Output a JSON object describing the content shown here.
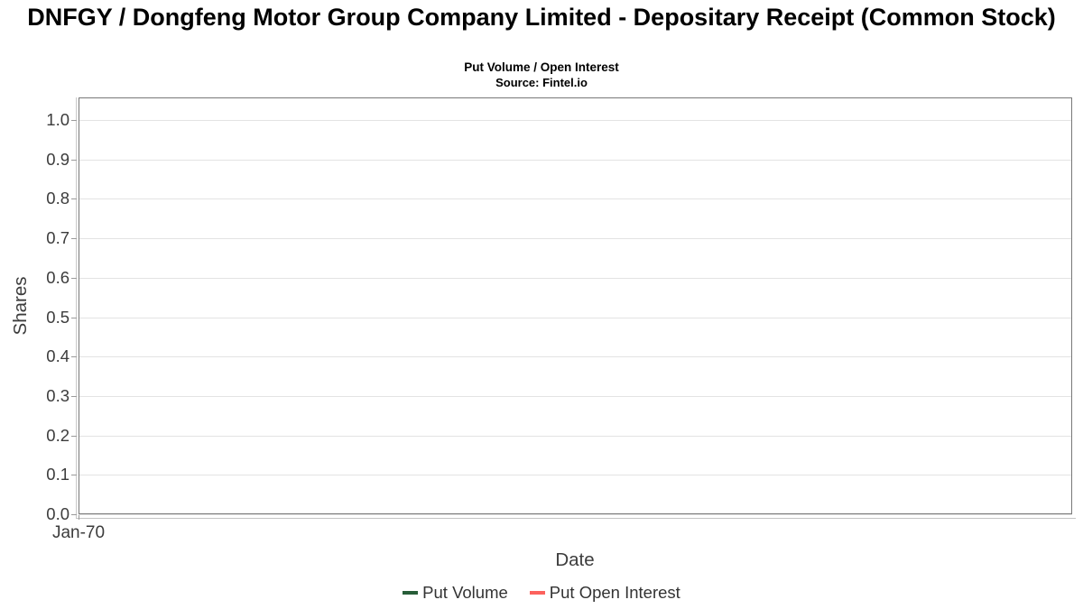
{
  "header": {
    "title": "DNFGY / Dongfeng Motor Group Company Limited - Depositary Receipt (Common Stock)",
    "subtitle": "Put Volume / Open Interest",
    "source": "Source: Fintel.io"
  },
  "chart_data": {
    "type": "line",
    "title": "DNFGY / Dongfeng Motor Group Company Limited - Depositary Receipt (Common Stock)",
    "subtitle": "Put Volume / Open Interest",
    "source": "Source: Fintel.io",
    "xlabel": "Date",
    "ylabel": "Shares",
    "ylim": [
      0.0,
      1.06
    ],
    "yticks": [
      {
        "value": 0.0,
        "label": "0.0"
      },
      {
        "value": 0.1,
        "label": "0.1"
      },
      {
        "value": 0.2,
        "label": "0.2"
      },
      {
        "value": 0.3,
        "label": "0.3"
      },
      {
        "value": 0.4,
        "label": "0.4"
      },
      {
        "value": 0.5,
        "label": "0.5"
      },
      {
        "value": 0.6,
        "label": "0.6"
      },
      {
        "value": 0.7,
        "label": "0.7"
      },
      {
        "value": 0.8,
        "label": "0.8"
      },
      {
        "value": 0.9,
        "label": "0.9"
      },
      {
        "value": 1.0,
        "label": "1.0"
      }
    ],
    "xticks": [
      {
        "label": "Jan-70"
      }
    ],
    "x": [],
    "series": [
      {
        "name": "Put Volume",
        "color": "#275d38",
        "values": []
      },
      {
        "name": "Put Open Interest",
        "color": "#fc625d",
        "values": []
      }
    ],
    "grid": true,
    "legend_position": "bottom"
  },
  "colors": {
    "background": "#ffffff",
    "grid": "#e3e3e3",
    "panel_border": "#787878",
    "axis_line": "#c9c9c9",
    "tick": "#9a9a9a",
    "axis_text": "#3c3c3c",
    "title_text": "#000000",
    "put_volume": "#275d38",
    "put_open_interest": "#fc625d"
  }
}
